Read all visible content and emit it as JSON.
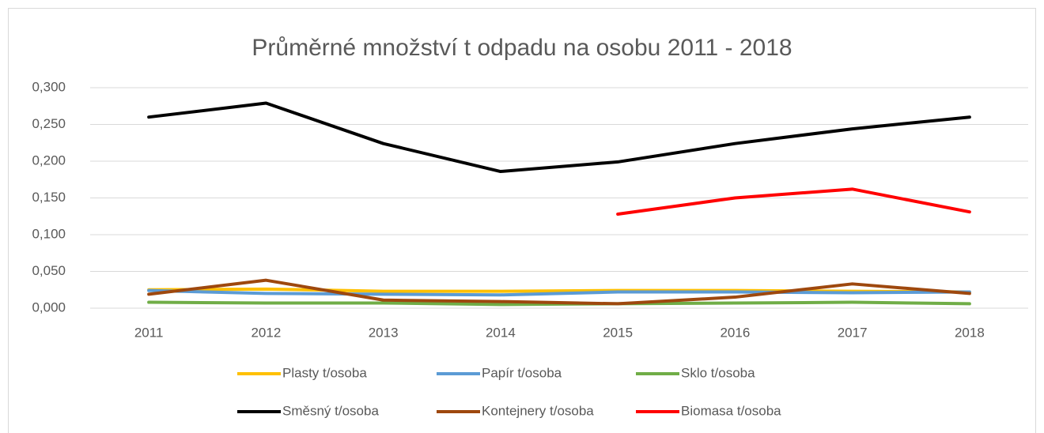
{
  "chart_data": {
    "type": "line",
    "title": "Průměrné množství t odpadu na osobu 2011 - 2018",
    "categories": [
      "2011",
      "2012",
      "2013",
      "2014",
      "2015",
      "2016",
      "2017",
      "2018"
    ],
    "series": [
      {
        "name": "Plasty t/osoba",
        "color": "#ffc000",
        "values": [
          0.025,
          0.026,
          0.023,
          0.023,
          0.024,
          0.024,
          0.023,
          0.022
        ]
      },
      {
        "name": "Papír t/osoba",
        "color": "#5b9bd5",
        "values": [
          0.024,
          0.02,
          0.019,
          0.018,
          0.022,
          0.022,
          0.021,
          0.022
        ]
      },
      {
        "name": "Sklo t/osoba",
        "color": "#70ad47",
        "values": [
          0.008,
          0.007,
          0.007,
          0.005,
          0.006,
          0.007,
          0.008,
          0.006
        ]
      },
      {
        "name": "Směsný t/osoba",
        "color": "#000000",
        "values": [
          0.26,
          0.279,
          0.224,
          0.186,
          0.199,
          0.224,
          0.244,
          0.26
        ]
      },
      {
        "name": "Kontejnery t/osoba",
        "color": "#9e480e",
        "values": [
          0.019,
          0.038,
          0.011,
          0.009,
          0.006,
          0.015,
          0.033,
          0.02
        ]
      },
      {
        "name": "Biomasa t/osoba",
        "color": "#ff0000",
        "values": [
          null,
          null,
          null,
          null,
          0.128,
          0.15,
          0.162,
          0.131
        ]
      }
    ],
    "ylim": [
      0,
      0.3
    ],
    "yticks": [
      {
        "value": 0,
        "label": "0,000"
      },
      {
        "value": 0.05,
        "label": "0,050"
      },
      {
        "value": 0.1,
        "label": "0,100"
      },
      {
        "value": 0.15,
        "label": "0,150"
      },
      {
        "value": 0.2,
        "label": "0,200"
      },
      {
        "value": 0.25,
        "label": "0,250"
      },
      {
        "value": 0.3,
        "label": "0,300"
      }
    ],
    "grid": true,
    "legend": "bottom"
  }
}
